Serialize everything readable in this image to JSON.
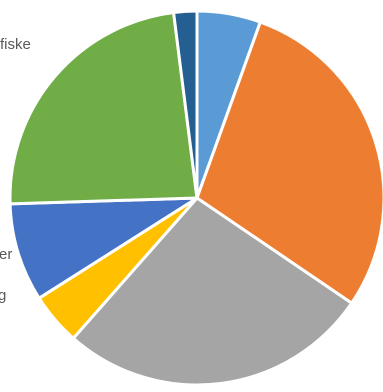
{
  "chart_data": {
    "type": "pie",
    "start_angle_deg": 0,
    "direction": "clockwise",
    "slices": [
      {
        "name": "",
        "value": 5.5,
        "color": "#5B9BD5"
      },
      {
        "name": "",
        "value": 29.0,
        "color": "#ED7D31"
      },
      {
        "name": "",
        "value": 27.0,
        "color": "#A5A5A5"
      },
      {
        "name": "",
        "value": 4.5,
        "color": "#FFC000"
      },
      {
        "name": "",
        "value": 8.5,
        "color": "#4472C4"
      },
      {
        "name": "",
        "value": 23.5,
        "color": "#70AD47"
      },
      {
        "name": "",
        "value": 2.0,
        "color": "#255E91"
      }
    ],
    "visible_partial_labels": [
      "fiske",
      "er",
      "g"
    ]
  }
}
